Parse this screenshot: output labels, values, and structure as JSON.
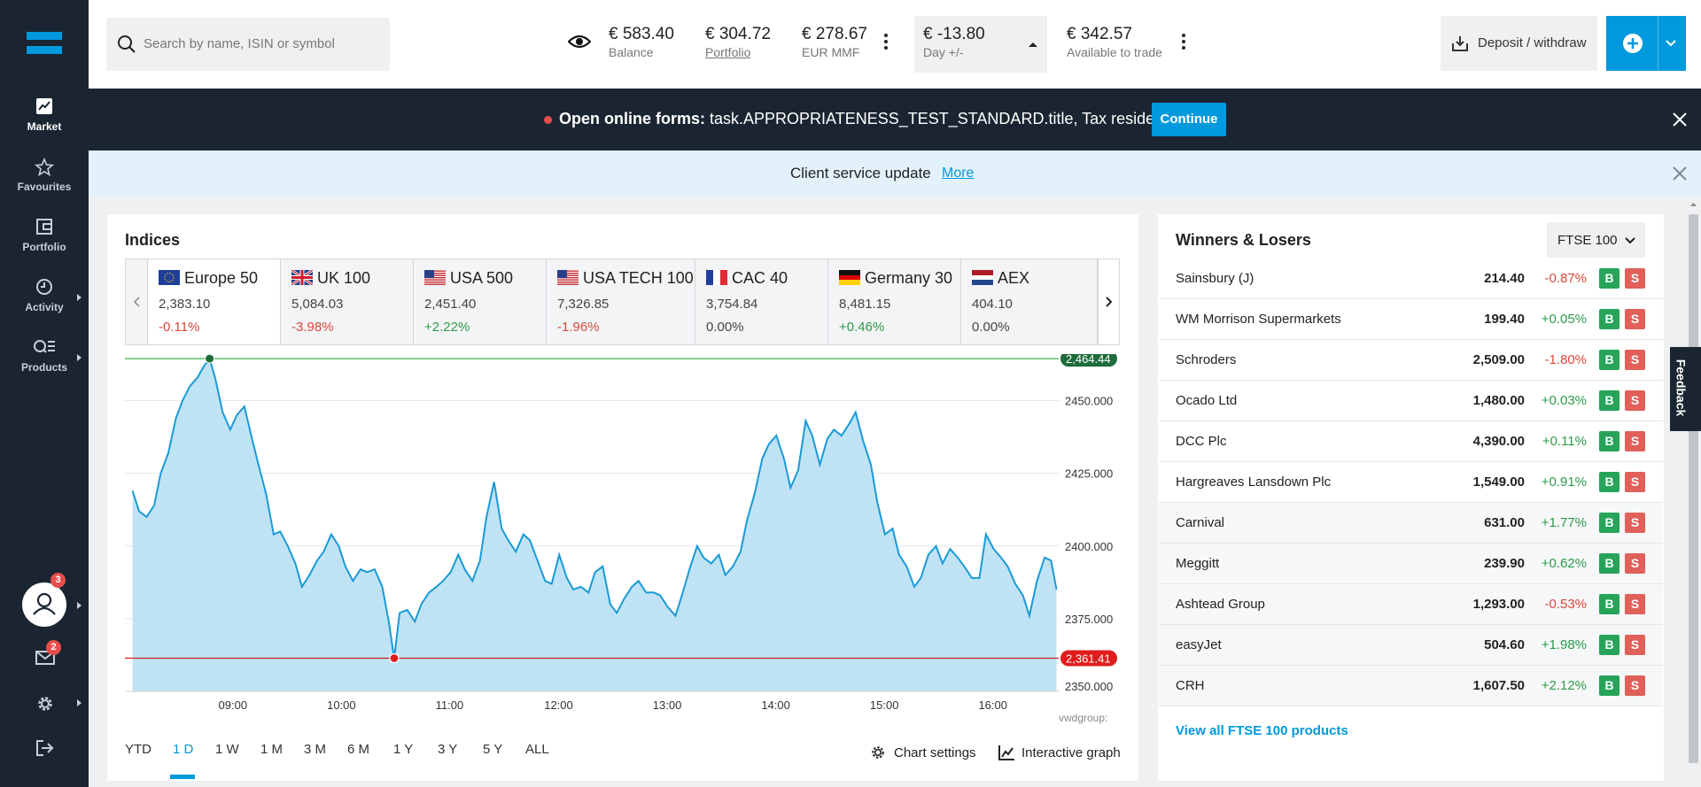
{
  "sidebar": {
    "items": [
      {
        "label": "Market",
        "icon": "market-chart-icon",
        "active": true
      },
      {
        "label": "Favourites",
        "icon": "star-icon"
      },
      {
        "label": "Portfolio",
        "icon": "wallet-icon"
      },
      {
        "label": "Activity",
        "icon": "clock-icon"
      },
      {
        "label": "Products",
        "icon": "products-search-icon"
      }
    ],
    "profile_badge": "3",
    "messages_badge": "2"
  },
  "topbar": {
    "search_placeholder": "Search by name, ISIN or symbol",
    "balance": {
      "value": "€ 583.40",
      "label": "Balance"
    },
    "portfolio": {
      "value": "€ 304.72",
      "label": "Portfolio"
    },
    "mmf": {
      "value": "€ 278.67",
      "label": "EUR MMF"
    },
    "day": {
      "value": "€ -13.80",
      "label": "Day +/-"
    },
    "available": {
      "value": "€ 342.57",
      "label": "Available to trade"
    },
    "deposit_label": "Deposit / withdraw"
  },
  "banner": {
    "bold": "Open online forms:",
    "text": " task.APPROPRIATENESS_TEST_STANDARD.title, Tax residency ...",
    "button": "Continue"
  },
  "notice": {
    "text": "Client service update",
    "more": "More"
  },
  "indices": {
    "title": "Indices",
    "tabs": [
      {
        "name": "Europe 50",
        "flag": "eu",
        "value": "2,383.10",
        "change": "-0.11%",
        "dir": "neg"
      },
      {
        "name": "UK 100",
        "flag": "uk",
        "value": "5,084.03",
        "change": "-3.98%",
        "dir": "neg"
      },
      {
        "name": "USA 500",
        "flag": "us",
        "value": "2,451.40",
        "change": "+2.22%",
        "dir": "pos"
      },
      {
        "name": "USA TECH 100",
        "flag": "us",
        "value": "7,326.85",
        "change": "-1.96%",
        "dir": "neg"
      },
      {
        "name": "CAC 40",
        "flag": "fr",
        "value": "3,754.84",
        "change": "0.00%",
        "dir": "neu"
      },
      {
        "name": "Germany 30",
        "flag": "de",
        "value": "8,481.15",
        "change": "+0.46%",
        "dir": "pos"
      },
      {
        "name": "AEX",
        "flag": "nl",
        "value": "404.10",
        "change": "0.00%",
        "dir": "neu"
      }
    ],
    "ranges": [
      "YTD",
      "1 D",
      "1 W",
      "1 M",
      "3 M",
      "6 M",
      "1 Y",
      "3 Y",
      "5 Y",
      "ALL"
    ],
    "active_range": "1 D",
    "chart_settings": "Chart settings",
    "interactive_graph": "Interactive graph"
  },
  "chart_data": {
    "type": "area",
    "series": [
      {
        "name": "Europe 50",
        "color": "#1a9ad6"
      }
    ],
    "x_ticks": [
      "09:00",
      "10:00",
      "11:00",
      "12:00",
      "13:00",
      "14:00",
      "15:00",
      "16:00"
    ],
    "y_ticks": [
      "2450.000",
      "2425.000",
      "2400.000",
      "2375.000",
      "2350.000"
    ],
    "ylim": [
      2350,
      2466
    ],
    "high_label": "2,464.44",
    "low_label": "2,361.41",
    "high": 2464.44,
    "low": 2361.41,
    "source": "vwdgroup:",
    "points": [
      [
        8.07,
        2419
      ],
      [
        8.13,
        2412
      ],
      [
        8.2,
        2410
      ],
      [
        8.27,
        2414
      ],
      [
        8.33,
        2425
      ],
      [
        8.4,
        2432
      ],
      [
        8.47,
        2444
      ],
      [
        8.53,
        2450
      ],
      [
        8.6,
        2455
      ],
      [
        8.67,
        2458
      ],
      [
        8.73,
        2462
      ],
      [
        8.78,
        2464.4
      ],
      [
        8.83,
        2458
      ],
      [
        8.9,
        2446
      ],
      [
        8.97,
        2440
      ],
      [
        9.03,
        2445
      ],
      [
        9.1,
        2448
      ],
      [
        9.17,
        2437
      ],
      [
        9.23,
        2428
      ],
      [
        9.3,
        2418
      ],
      [
        9.37,
        2404
      ],
      [
        9.43,
        2405
      ],
      [
        9.5,
        2400
      ],
      [
        9.57,
        2394
      ],
      [
        9.63,
        2386
      ],
      [
        9.7,
        2390
      ],
      [
        9.77,
        2395
      ],
      [
        9.83,
        2398
      ],
      [
        9.9,
        2404
      ],
      [
        9.97,
        2400
      ],
      [
        10.03,
        2393
      ],
      [
        10.1,
        2388
      ],
      [
        10.17,
        2392
      ],
      [
        10.23,
        2391
      ],
      [
        10.3,
        2392
      ],
      [
        10.37,
        2386
      ],
      [
        10.43,
        2374
      ],
      [
        10.48,
        2361.4
      ],
      [
        10.53,
        2377
      ],
      [
        10.6,
        2378
      ],
      [
        10.67,
        2374
      ],
      [
        10.73,
        2380
      ],
      [
        10.8,
        2384
      ],
      [
        10.87,
        2386
      ],
      [
        10.93,
        2388
      ],
      [
        11.0,
        2391
      ],
      [
        11.07,
        2397
      ],
      [
        11.13,
        2392
      ],
      [
        11.2,
        2388
      ],
      [
        11.27,
        2395
      ],
      [
        11.33,
        2410
      ],
      [
        11.4,
        2422
      ],
      [
        11.47,
        2406
      ],
      [
        11.53,
        2402
      ],
      [
        11.6,
        2398
      ],
      [
        11.67,
        2404
      ],
      [
        11.73,
        2402
      ],
      [
        11.8,
        2395
      ],
      [
        11.87,
        2388
      ],
      [
        11.93,
        2387
      ],
      [
        12.0,
        2397
      ],
      [
        12.07,
        2389
      ],
      [
        12.13,
        2385
      ],
      [
        12.2,
        2386
      ],
      [
        12.27,
        2384
      ],
      [
        12.33,
        2391
      ],
      [
        12.4,
        2393
      ],
      [
        12.47,
        2380
      ],
      [
        12.53,
        2377
      ],
      [
        12.6,
        2382
      ],
      [
        12.67,
        2386
      ],
      [
        12.73,
        2388
      ],
      [
        12.8,
        2384
      ],
      [
        12.87,
        2384
      ],
      [
        12.93,
        2383
      ],
      [
        13.0,
        2379
      ],
      [
        13.07,
        2376
      ],
      [
        13.13,
        2383
      ],
      [
        13.2,
        2392
      ],
      [
        13.27,
        2400
      ],
      [
        13.33,
        2396
      ],
      [
        13.4,
        2394
      ],
      [
        13.47,
        2397
      ],
      [
        13.53,
        2390
      ],
      [
        13.6,
        2393
      ],
      [
        13.67,
        2398
      ],
      [
        13.73,
        2409
      ],
      [
        13.8,
        2418
      ],
      [
        13.87,
        2430
      ],
      [
        13.93,
        2435
      ],
      [
        14.0,
        2438
      ],
      [
        14.07,
        2430
      ],
      [
        14.13,
        2420
      ],
      [
        14.2,
        2426
      ],
      [
        14.27,
        2443
      ],
      [
        14.33,
        2438
      ],
      [
        14.4,
        2428
      ],
      [
        14.47,
        2437
      ],
      [
        14.53,
        2440
      ],
      [
        14.6,
        2438
      ],
      [
        14.67,
        2442
      ],
      [
        14.73,
        2446
      ],
      [
        14.8,
        2436
      ],
      [
        14.87,
        2428
      ],
      [
        14.93,
        2415
      ],
      [
        15.0,
        2404
      ],
      [
        15.07,
        2406
      ],
      [
        15.13,
        2397
      ],
      [
        15.2,
        2393
      ],
      [
        15.27,
        2386
      ],
      [
        15.33,
        2389
      ],
      [
        15.4,
        2397
      ],
      [
        15.47,
        2400
      ],
      [
        15.53,
        2394
      ],
      [
        15.6,
        2399
      ],
      [
        15.67,
        2396
      ],
      [
        15.73,
        2393
      ],
      [
        15.8,
        2389
      ],
      [
        15.87,
        2389
      ],
      [
        15.93,
        2404
      ],
      [
        16.0,
        2399
      ],
      [
        16.07,
        2396
      ],
      [
        16.13,
        2393
      ],
      [
        16.2,
        2387
      ],
      [
        16.27,
        2383
      ],
      [
        16.33,
        2376
      ],
      [
        16.4,
        2388
      ],
      [
        16.47,
        2396
      ],
      [
        16.53,
        2395
      ],
      [
        16.58,
        2385
      ]
    ]
  },
  "winners": {
    "title": "Winners & Losers",
    "dropdown": "FTSE 100",
    "rows": [
      {
        "name": "Sainsbury (J)",
        "price": "214.40",
        "change": "-0.87%",
        "dir": "neg"
      },
      {
        "name": "WM Morrison Supermarkets",
        "price": "199.40",
        "change": "+0.05%",
        "dir": "pos"
      },
      {
        "name": "Schroders",
        "price": "2,509.00",
        "change": "-1.80%",
        "dir": "neg"
      },
      {
        "name": "Ocado Ltd",
        "price": "1,480.00",
        "change": "+0.03%",
        "dir": "pos"
      },
      {
        "name": "DCC Plc",
        "price": "4,390.00",
        "change": "+0.11%",
        "dir": "pos"
      },
      {
        "name": "Hargreaves Lansdown Plc",
        "price": "1,549.00",
        "change": "+0.91%",
        "dir": "pos"
      },
      {
        "name": "Carnival",
        "price": "631.00",
        "change": "+1.77%",
        "dir": "pos"
      },
      {
        "name": "Meggitt",
        "price": "239.90",
        "change": "+0.62%",
        "dir": "pos"
      },
      {
        "name": "Ashtead Group",
        "price": "1,293.00",
        "change": "-0.53%",
        "dir": "neg"
      },
      {
        "name": "easyJet",
        "price": "504.60",
        "change": "+1.98%",
        "dir": "pos"
      },
      {
        "name": "CRH",
        "price": "1,607.50",
        "change": "+2.12%",
        "dir": "pos"
      }
    ],
    "buy_label": "B",
    "sell_label": "S",
    "view_all": "View all FTSE 100 products"
  },
  "feedback": "Feedback",
  "colors": {
    "accent": "#0099dd",
    "sidebar": "#1b2532",
    "positive": "#2e9a4a",
    "negative": "#d9483b",
    "line": "#1a9ad6",
    "fill": "#bfe3f5"
  }
}
